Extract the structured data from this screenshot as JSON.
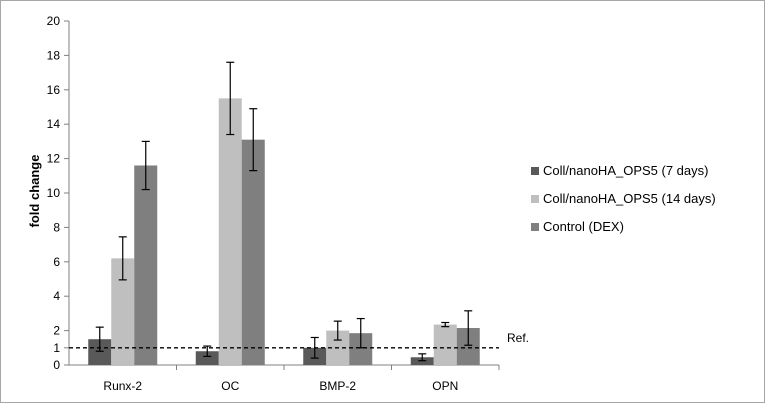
{
  "chart_data": {
    "type": "bar",
    "categories": [
      "Runx-2",
      "OC",
      "BMP-2",
      "OPN"
    ],
    "series": [
      {
        "name": "Coll/nanoHA_OPS5 (7 days)",
        "color": "#595959",
        "values": [
          1.5,
          0.8,
          1.0,
          0.45
        ],
        "errors": [
          0.7,
          0.3,
          0.6,
          0.2
        ]
      },
      {
        "name": "Coll/nanoHA_OPS5 (14 days)",
        "color": "#bfbfbf",
        "values": [
          6.2,
          15.5,
          2.0,
          2.35
        ],
        "errors": [
          1.25,
          2.1,
          0.55,
          0.12
        ]
      },
      {
        "name": "Control (DEX)",
        "color": "#7f7f7f",
        "values": [
          11.6,
          13.1,
          1.85,
          2.15
        ],
        "errors": [
          1.4,
          1.8,
          0.85,
          1.0
        ]
      }
    ],
    "ylabel": "fold change",
    "xlabel": "",
    "ylim": [
      0,
      20
    ],
    "yticks": [
      "0",
      "1",
      "2",
      "4",
      "6",
      "8",
      "10",
      "12",
      "14",
      "16",
      "18",
      "20"
    ],
    "ytick_values": [
      0,
      1,
      2,
      4,
      6,
      8,
      10,
      12,
      14,
      16,
      18,
      20
    ],
    "reference_line": {
      "value": 1,
      "label": "Ref.",
      "style": "dashed"
    },
    "grid": false,
    "legend": "right"
  }
}
